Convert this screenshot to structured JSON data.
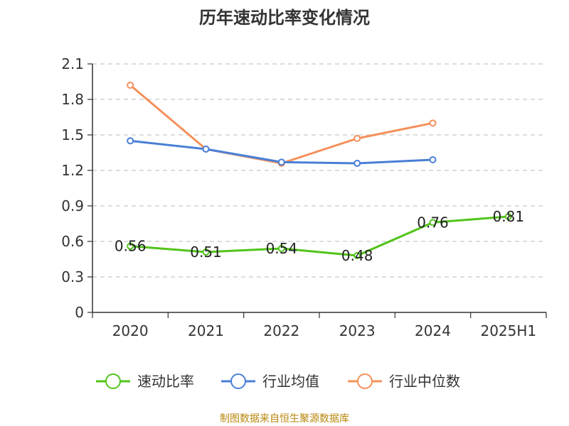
{
  "chart_data": {
    "type": "line",
    "title": "历年速动比率变化情况",
    "categories": [
      "2020",
      "2021",
      "2022",
      "2023",
      "2024",
      "2025H1"
    ],
    "y_ticks": [
      "0",
      "0.3",
      "0.6",
      "0.9",
      "1.2",
      "1.5",
      "1.8",
      "2.1"
    ],
    "ylim": [
      0,
      2.1
    ],
    "grid": true,
    "legend_position": "bottom",
    "series": [
      {
        "name": "速动比率",
        "color": "#52c41a",
        "values": [
          0.56,
          0.51,
          0.54,
          0.48,
          0.76,
          0.81
        ],
        "labels": [
          "0.56",
          "0.51",
          "0.54",
          "0.48",
          "0.76",
          "0.81"
        ],
        "show_labels": true
      },
      {
        "name": "行业均值",
        "color": "#4a7fd6",
        "values": [
          1.45,
          1.38,
          1.27,
          1.26,
          1.29,
          null
        ],
        "show_labels": false
      },
      {
        "name": "行业中位数",
        "color": "#f5905a",
        "values": [
          1.92,
          1.38,
          1.26,
          1.47,
          1.6,
          null
        ],
        "show_labels": false
      }
    ],
    "source_text": "制图数据来自恒生聚源数据库",
    "source_color": "#b8860b"
  }
}
